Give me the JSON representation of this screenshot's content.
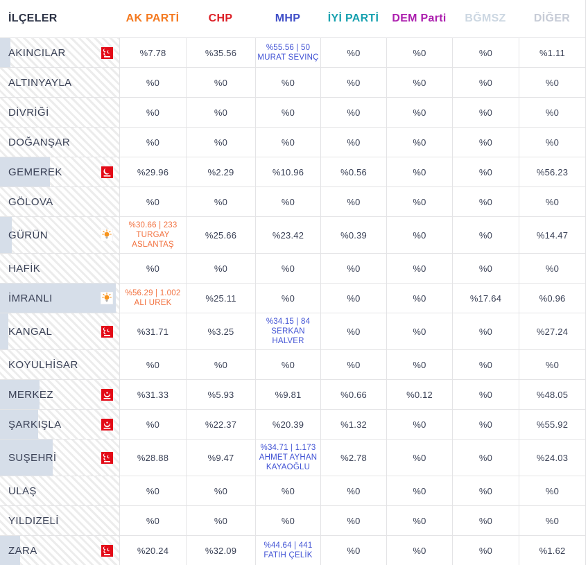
{
  "header": {
    "districts_label": "İLÇELER",
    "parties": [
      {
        "key": "ak-parti",
        "label": "AK PARTİ",
        "color": "#f4791f"
      },
      {
        "key": "chp",
        "label": "CHP",
        "color": "#dc1f26"
      },
      {
        "key": "mhp",
        "label": "MHP",
        "color": "#4150c8"
      },
      {
        "key": "iyi-parti",
        "label": "İYİ PARTİ",
        "color": "#18a1af"
      },
      {
        "key": "dem-parti",
        "label": "DEM Parti",
        "color": "#ac1fae"
      },
      {
        "key": "bgmsz",
        "label": "BĞMSZ",
        "color": "#ccd7e2"
      },
      {
        "key": "diger",
        "label": "DİĞER",
        "color": "#c6cbd6"
      }
    ]
  },
  "winner_colors": {
    "akp": "#f2713f",
    "mhp": "#4052d4"
  },
  "fill_color": "#d6dee9",
  "rows": [
    {
      "district": "AKINCILAR",
      "icon": "mhp-logo",
      "progress": 9,
      "cells": [
        "%7.78",
        "%35.56",
        {
          "winner": "mhp",
          "lines": [
            "%55.56 | 50",
            "MURAT SEVINÇ"
          ]
        },
        "%0",
        "%0",
        "%0",
        "%1.11"
      ]
    },
    {
      "district": "ALTINYAYLA",
      "icon": null,
      "progress": 0,
      "cells": [
        "%0",
        "%0",
        "%0",
        "%0",
        "%0",
        "%0",
        "%0"
      ]
    },
    {
      "district": "DİVRİĞİ",
      "icon": null,
      "progress": 0,
      "cells": [
        "%0",
        "%0",
        "%0",
        "%0",
        "%0",
        "%0",
        "%0"
      ]
    },
    {
      "district": "DOĞANŞAR",
      "icon": null,
      "progress": 0,
      "cells": [
        "%0",
        "%0",
        "%0",
        "%0",
        "%0",
        "%0",
        "%0"
      ]
    },
    {
      "district": "GEMEREK",
      "icon": "yrp-logo",
      "progress": 42,
      "cells": [
        "%29.96",
        "%2.29",
        "%10.96",
        "%0.56",
        "%0",
        "%0",
        "%56.23"
      ]
    },
    {
      "district": "GÖLOVA",
      "icon": null,
      "progress": 0,
      "cells": [
        "%0",
        "%0",
        "%0",
        "%0",
        "%0",
        "%0",
        "%0"
      ]
    },
    {
      "district": "GÜRÜN",
      "icon": "akp-logo",
      "progress": 10,
      "cells": [
        {
          "winner": "akp",
          "lines": [
            "%30.66 | 233",
            "TURGAY ASLANTAŞ"
          ]
        },
        "%25.66",
        "%23.42",
        "%0.39",
        "%0",
        "%0",
        "%14.47"
      ]
    },
    {
      "district": "HAFİK",
      "icon": null,
      "progress": 0,
      "cells": [
        "%0",
        "%0",
        "%0",
        "%0",
        "%0",
        "%0",
        "%0"
      ]
    },
    {
      "district": "İMRANLI",
      "icon": "akp-logo",
      "progress": 97,
      "cells": [
        {
          "winner": "akp",
          "lines": [
            "%56.29 | 1.002",
            "ALI UREK"
          ]
        },
        "%25.11",
        "%0",
        "%0",
        "%0",
        "%17.64",
        "%0.96"
      ]
    },
    {
      "district": "KANGAL",
      "icon": "mhp-logo",
      "progress": 7,
      "cells": [
        "%31.71",
        "%3.25",
        {
          "winner": "mhp",
          "lines": [
            "%34.15 | 84",
            "SERKAN HALVER"
          ]
        },
        "%0",
        "%0",
        "%0",
        "%27.24"
      ]
    },
    {
      "district": "KOYULHİSAR",
      "icon": null,
      "progress": 0,
      "cells": [
        "%0",
        "%0",
        "%0",
        "%0",
        "%0",
        "%0",
        "%0"
      ]
    },
    {
      "district": "MERKEZ",
      "icon": "bbp-logo",
      "progress": 33,
      "cells": [
        "%31.33",
        "%5.93",
        "%9.81",
        "%0.66",
        "%0.12",
        "%0",
        "%48.05"
      ]
    },
    {
      "district": "ŞARKIŞLA",
      "icon": "bbp-logo",
      "progress": 32,
      "cells": [
        "%0",
        "%22.37",
        "%20.39",
        "%1.32",
        "%0",
        "%0",
        "%55.92"
      ]
    },
    {
      "district": "SUŞEHRİ",
      "icon": "mhp-logo",
      "progress": 44,
      "cells": [
        "%28.88",
        "%9.47",
        {
          "winner": "mhp",
          "lines": [
            "%34.71 | 1.173",
            "AHMET AYHAN",
            "KAYAOĞLU"
          ]
        },
        "%2.78",
        "%0",
        "%0",
        "%24.03"
      ]
    },
    {
      "district": "ULAŞ",
      "icon": null,
      "progress": 0,
      "cells": [
        "%0",
        "%0",
        "%0",
        "%0",
        "%0",
        "%0",
        "%0"
      ]
    },
    {
      "district": "YILDIZELİ",
      "icon": null,
      "progress": 0,
      "cells": [
        "%0",
        "%0",
        "%0",
        "%0",
        "%0",
        "%0",
        "%0"
      ]
    },
    {
      "district": "ZARA",
      "icon": "mhp-logo",
      "progress": 17,
      "cells": [
        "%20.24",
        "%32.09",
        {
          "winner": "mhp",
          "lines": [
            "%44.64 | 441",
            "FATIH ÇELİK"
          ]
        },
        "%0",
        "%0",
        "%0",
        "%1.62"
      ]
    }
  ]
}
